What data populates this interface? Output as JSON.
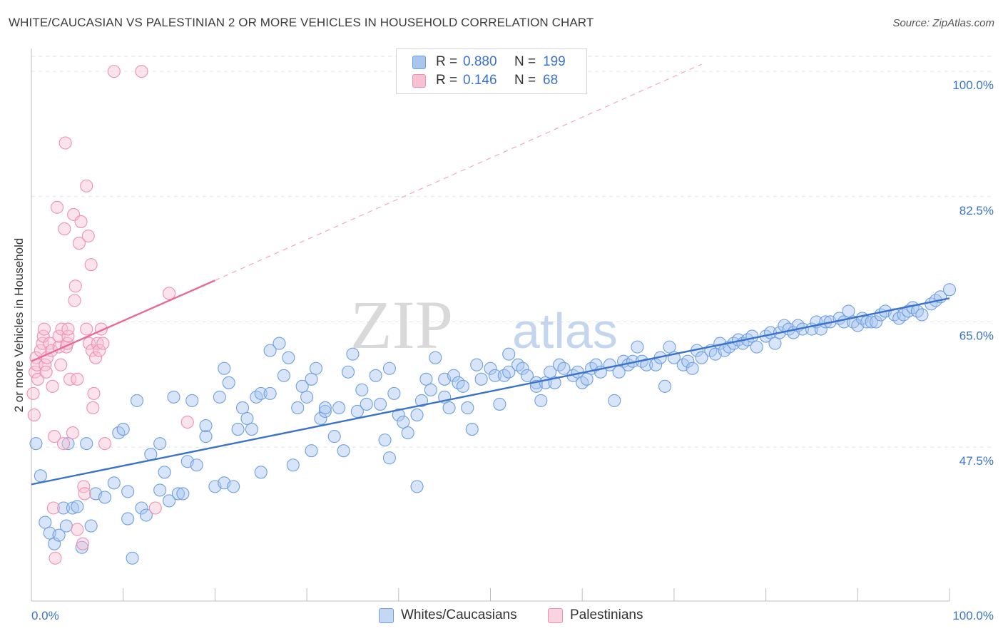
{
  "header": {
    "title": "WHITE/CAUCASIAN VS PALESTINIAN 2 OR MORE VEHICLES IN HOUSEHOLD CORRELATION CHART",
    "source": "Source: ZipAtlas.com"
  },
  "watermark": {
    "zip": "ZIP",
    "atlas": "atlas"
  },
  "legend": {
    "rows": [
      {
        "r_label": "R =",
        "r_value": "0.880",
        "n_label": "N =",
        "n_value": "199",
        "color": "#6f9fe0"
      },
      {
        "r_label": "R =",
        "r_value": "0.146",
        "n_label": "N =",
        "n_value": "68",
        "color": "#ef8fb0"
      }
    ]
  },
  "bottom_legend": {
    "series1": "Whites/Caucasians",
    "series2": "Palestinians"
  },
  "chart_data": {
    "type": "scatter",
    "title": "WHITE/CAUCASIAN VS PALESTINIAN 2 OR MORE VEHICLES IN HOUSEHOLD CORRELATION CHART",
    "xlabel": "",
    "ylabel": "2 or more Vehicles in Household",
    "xlim": [
      0,
      100
    ],
    "ylim": [
      26,
      103
    ],
    "x_tick_labels": [
      "0.0%",
      "100.0%"
    ],
    "y_ticks": [
      47.5,
      65.0,
      82.5,
      100.0
    ],
    "y_tick_labels": [
      "47.5%",
      "65.0%",
      "82.5%",
      "100.0%"
    ],
    "grid": true,
    "legend_position": "top-center",
    "series": [
      {
        "name": "Whites/Caucasians",
        "color": "#6f9fe0",
        "fill": "#a9c6ef",
        "line_color": "#3a73c9",
        "trend": {
          "x0": 0,
          "y0": 42.3,
          "x1": 100,
          "y1": 68.3
        },
        "points": [
          [
            0.5,
            48
          ],
          [
            1,
            43.5
          ],
          [
            1.5,
            37
          ],
          [
            2,
            35.5
          ],
          [
            2.5,
            34
          ],
          [
            3,
            35.2
          ],
          [
            3.5,
            39
          ],
          [
            3.8,
            36.5
          ],
          [
            4,
            48
          ],
          [
            4.5,
            39
          ],
          [
            5,
            39.2
          ],
          [
            5.5,
            33.5
          ],
          [
            6,
            48
          ],
          [
            6.5,
            36.5
          ],
          [
            7,
            41
          ],
          [
            8,
            40.5
          ],
          [
            9,
            42.5
          ],
          [
            9.5,
            49.5
          ],
          [
            10,
            50
          ],
          [
            10.5,
            37.5
          ],
          [
            10.5,
            41.3
          ],
          [
            11,
            32
          ],
          [
            11.5,
            54
          ],
          [
            12,
            39
          ],
          [
            12.5,
            38
          ],
          [
            13,
            46.5
          ],
          [
            14,
            41.5
          ],
          [
            14,
            48
          ],
          [
            14.5,
            44
          ],
          [
            15,
            40
          ],
          [
            15.5,
            54.5
          ],
          [
            16,
            41
          ],
          [
            16.5,
            41
          ],
          [
            17,
            45.5
          ],
          [
            17.5,
            54
          ],
          [
            18,
            45
          ],
          [
            19,
            49
          ],
          [
            19,
            50.5
          ],
          [
            20,
            42
          ],
          [
            20.5,
            54.5
          ],
          [
            21,
            42.5
          ],
          [
            21,
            58.5
          ],
          [
            21.5,
            56.5
          ],
          [
            22,
            42
          ],
          [
            22.5,
            50
          ],
          [
            23,
            53
          ],
          [
            23.5,
            51.5
          ],
          [
            24,
            50
          ],
          [
            24.5,
            54.5
          ],
          [
            25,
            55
          ],
          [
            25,
            44
          ],
          [
            26,
            55
          ],
          [
            26,
            61
          ],
          [
            27,
            62
          ],
          [
            27.5,
            57.5
          ],
          [
            28,
            60
          ],
          [
            28.5,
            45
          ],
          [
            29,
            53
          ],
          [
            29.5,
            56
          ],
          [
            30,
            54.5
          ],
          [
            30.5,
            57
          ],
          [
            30.5,
            47
          ],
          [
            31,
            58.5
          ],
          [
            31.5,
            51.5
          ],
          [
            32,
            52.5
          ],
          [
            32,
            53
          ],
          [
            33,
            49
          ],
          [
            33.5,
            53
          ],
          [
            34,
            47
          ],
          [
            34.5,
            58
          ],
          [
            35,
            60.5
          ],
          [
            35.5,
            52.5
          ],
          [
            36,
            55.5
          ],
          [
            36.5,
            53.5
          ],
          [
            37.5,
            57.5
          ],
          [
            38,
            53.5
          ],
          [
            38.5,
            48.5
          ],
          [
            39,
            58.5
          ],
          [
            39,
            46
          ],
          [
            39.5,
            55
          ],
          [
            40,
            52
          ],
          [
            40.5,
            51
          ],
          [
            41,
            49.5
          ],
          [
            42,
            42
          ],
          [
            42,
            52
          ],
          [
            42.5,
            54
          ],
          [
            43,
            57
          ],
          [
            43.5,
            55.5
          ],
          [
            44,
            60
          ],
          [
            45,
            57
          ],
          [
            45,
            54.5
          ],
          [
            45.5,
            53
          ],
          [
            46,
            57.5
          ],
          [
            46.5,
            56.5
          ],
          [
            47,
            56
          ],
          [
            47.5,
            53
          ],
          [
            48,
            50
          ],
          [
            48.5,
            59
          ],
          [
            49,
            57
          ],
          [
            50,
            58.5
          ],
          [
            50.5,
            57.5
          ],
          [
            51,
            53.5
          ],
          [
            51.5,
            57.5
          ],
          [
            52,
            58
          ],
          [
            52,
            60.5
          ],
          [
            53,
            59
          ],
          [
            53.5,
            58.5
          ],
          [
            54,
            57.5
          ],
          [
            55,
            56.5
          ],
          [
            55,
            56
          ],
          [
            55.5,
            54
          ],
          [
            56,
            56.5
          ],
          [
            56.5,
            58
          ],
          [
            57,
            56.5
          ],
          [
            57.5,
            59
          ],
          [
            58,
            58.5
          ],
          [
            59,
            57.5
          ],
          [
            59.5,
            58
          ],
          [
            60,
            56.5
          ],
          [
            60.5,
            57
          ],
          [
            61,
            58.5
          ],
          [
            61.5,
            59
          ],
          [
            62,
            58
          ],
          [
            63,
            59
          ],
          [
            63.5,
            54
          ],
          [
            64,
            58
          ],
          [
            64.5,
            59.5
          ],
          [
            65,
            59
          ],
          [
            65.5,
            59.5
          ],
          [
            66,
            61.5
          ],
          [
            66.5,
            59.5
          ],
          [
            67,
            59
          ],
          [
            68,
            59
          ],
          [
            68.5,
            60
          ],
          [
            69,
            56
          ],
          [
            69.5,
            61.5
          ],
          [
            70,
            60
          ],
          [
            71,
            59
          ],
          [
            71.5,
            59.5
          ],
          [
            72,
            58.5
          ],
          [
            72.5,
            61
          ],
          [
            73,
            60
          ],
          [
            74,
            61
          ],
          [
            74.5,
            60.5
          ],
          [
            75,
            62
          ],
          [
            75.5,
            61
          ],
          [
            76,
            61.5
          ],
          [
            76.5,
            62
          ],
          [
            77,
            62.5
          ],
          [
            77.5,
            62
          ],
          [
            78,
            62.5
          ],
          [
            78.5,
            63
          ],
          [
            79,
            61.5
          ],
          [
            80,
            63
          ],
          [
            80.5,
            63.5
          ],
          [
            81,
            62
          ],
          [
            81.5,
            63.5
          ],
          [
            82,
            64.5
          ],
          [
            82.5,
            64
          ],
          [
            83,
            63.5
          ],
          [
            83.5,
            64.5
          ],
          [
            84,
            64
          ],
          [
            85,
            64
          ],
          [
            85.5,
            65
          ],
          [
            86,
            64
          ],
          [
            86.5,
            65
          ],
          [
            87,
            65
          ],
          [
            88,
            65.5
          ],
          [
            88.5,
            65
          ],
          [
            89,
            66.5
          ],
          [
            89.5,
            65
          ],
          [
            90,
            64.5
          ],
          [
            90.5,
            65.5
          ],
          [
            91,
            65
          ],
          [
            91.5,
            65
          ],
          [
            92,
            65
          ],
          [
            92.5,
            66
          ],
          [
            93,
            66.5
          ],
          [
            94,
            66
          ],
          [
            94.5,
            65.5
          ],
          [
            95,
            66
          ],
          [
            95.5,
            66.5
          ],
          [
            96,
            67
          ],
          [
            96.5,
            66.5
          ],
          [
            97,
            66
          ],
          [
            98,
            67.5
          ],
          [
            98.5,
            68
          ],
          [
            99,
            68.5
          ],
          [
            100,
            69.5
          ]
        ]
      },
      {
        "name": "Palestinians",
        "color": "#ef8fb0",
        "fill": "#f6c1d3",
        "line_color": "#e96b94",
        "trend": {
          "x0": 0,
          "y0": 59.5,
          "x1": 20,
          "y1": 70.8
        },
        "trend_dashed": {
          "x0": 20,
          "y0": 70.8,
          "x1": 73,
          "y1": 101
        },
        "points": [
          [
            0.2,
            55
          ],
          [
            0.3,
            52
          ],
          [
            0.4,
            58
          ],
          [
            0.5,
            60
          ],
          [
            0.6,
            59
          ],
          [
            0.7,
            57
          ],
          [
            1,
            61
          ],
          [
            1.2,
            62
          ],
          [
            1.3,
            63
          ],
          [
            1.4,
            64
          ],
          [
            1.5,
            59
          ],
          [
            1.6,
            58
          ],
          [
            1.7,
            60
          ],
          [
            2,
            62
          ],
          [
            2.2,
            61
          ],
          [
            2.3,
            56
          ],
          [
            2.4,
            39
          ],
          [
            2.5,
            49
          ],
          [
            2.6,
            32
          ],
          [
            2.8,
            81
          ],
          [
            3,
            61.5
          ],
          [
            3,
            63
          ],
          [
            3.2,
            59
          ],
          [
            3.3,
            64
          ],
          [
            3.5,
            48
          ],
          [
            3.6,
            78
          ],
          [
            3.7,
            90
          ],
          [
            3.8,
            61.5
          ],
          [
            3.9,
            62
          ],
          [
            4,
            63
          ],
          [
            4,
            64
          ],
          [
            4.2,
            57
          ],
          [
            4.5,
            49.5
          ],
          [
            4.6,
            80
          ],
          [
            4.7,
            68
          ],
          [
            5,
            57
          ],
          [
            5,
            36
          ],
          [
            4.8,
            70
          ],
          [
            5.2,
            76
          ],
          [
            5.4,
            79
          ],
          [
            5.6,
            34
          ],
          [
            5.7,
            42
          ],
          [
            5.8,
            41
          ],
          [
            6,
            64
          ],
          [
            6,
            84
          ],
          [
            6.2,
            77
          ],
          [
            6.3,
            62
          ],
          [
            6.5,
            73
          ],
          [
            6.6,
            61
          ],
          [
            6.7,
            53
          ],
          [
            6.8,
            55
          ],
          [
            7,
            60
          ],
          [
            7.2,
            62
          ],
          [
            7.4,
            61
          ],
          [
            7.6,
            64
          ],
          [
            7.8,
            62
          ],
          [
            8,
            48
          ],
          [
            9,
            100
          ],
          [
            12,
            100
          ],
          [
            13.5,
            39
          ],
          [
            15,
            69
          ],
          [
            17,
            51
          ]
        ]
      }
    ]
  }
}
